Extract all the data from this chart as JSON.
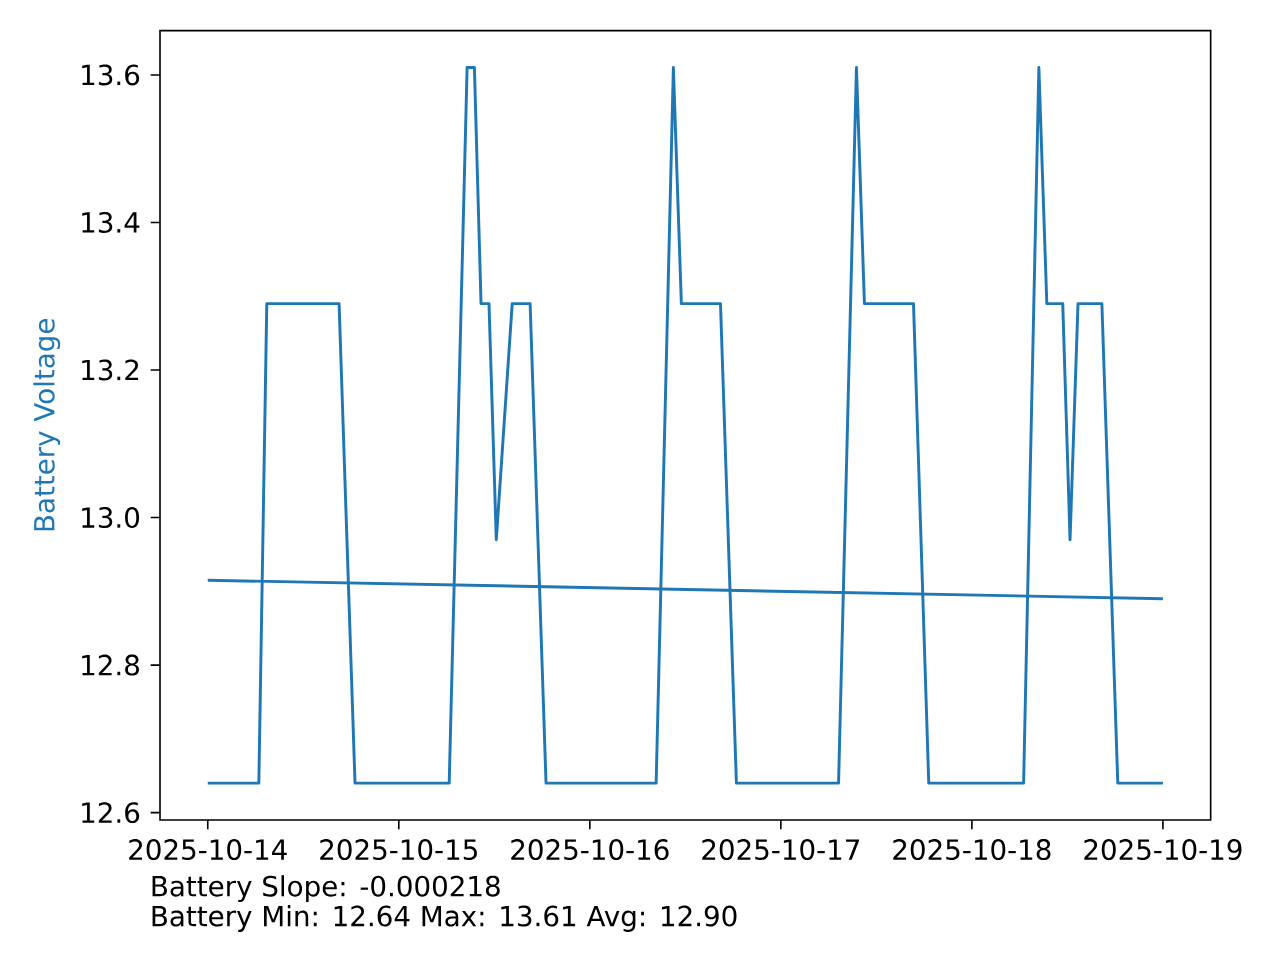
{
  "chart_data": {
    "type": "line",
    "ylabel": "Battery Voltage",
    "xlim": [
      "2025-10-13T18:00",
      "2025-10-19T06:00"
    ],
    "xticks": [
      "2025-10-14",
      "2025-10-15",
      "2025-10-16",
      "2025-10-17",
      "2025-10-18",
      "2025-10-19"
    ],
    "ylim": [
      12.59,
      13.66
    ],
    "yticks": [
      12.6,
      12.8,
      {
        "value": 13.0,
        "label": "13.0"
      },
      13.2,
      13.4,
      13.6
    ],
    "series": [
      {
        "color": "#1f77b4",
        "x": [
          "2025-10-14T00:00",
          "2025-10-14T06:25",
          "2025-10-14T07:25",
          "2025-10-14T16:30",
          "2025-10-14T18:30",
          "2025-10-15T06:20",
          "2025-10-15T08:35",
          "2025-10-15T09:30",
          "2025-10-15T10:20",
          "2025-10-15T11:20",
          "2025-10-15T12:15",
          "2025-10-15T14:15",
          "2025-10-15T16:30",
          "2025-10-15T18:30",
          "2025-10-16T08:20",
          "2025-10-16T10:30",
          "2025-10-16T11:30",
          "2025-10-16T16:25",
          "2025-10-16T18:25",
          "2025-10-17T07:15",
          "2025-10-17T09:30",
          "2025-10-17T10:30",
          "2025-10-17T16:40",
          "2025-10-17T18:35",
          "2025-10-18T06:30",
          "2025-10-18T08:25",
          "2025-10-18T09:25",
          "2025-10-18T11:25",
          "2025-10-18T12:20",
          "2025-10-18T13:20",
          "2025-10-18T16:20",
          "2025-10-18T18:20",
          "2025-10-19T00:00"
        ],
        "values": [
          12.64,
          12.64,
          13.29,
          13.29,
          12.64,
          12.64,
          13.61,
          13.61,
          13.29,
          13.29,
          12.97,
          13.29,
          13.29,
          12.64,
          12.64,
          13.61,
          13.29,
          13.29,
          12.64,
          12.64,
          13.61,
          13.29,
          13.29,
          12.64,
          12.64,
          13.61,
          13.29,
          13.29,
          12.97,
          13.29,
          13.29,
          12.64,
          12.64
        ]
      },
      {
        "color": "#1f77b4",
        "x": [
          "2025-10-14T00:00",
          "2025-10-19T00:00"
        ],
        "values": [
          12.915,
          12.89
        ]
      }
    ],
    "annotations": [
      "Battery Slope: -0.000218",
      "Battery Min: 12.64 Max: 13.61 Avg: 12.90"
    ]
  }
}
